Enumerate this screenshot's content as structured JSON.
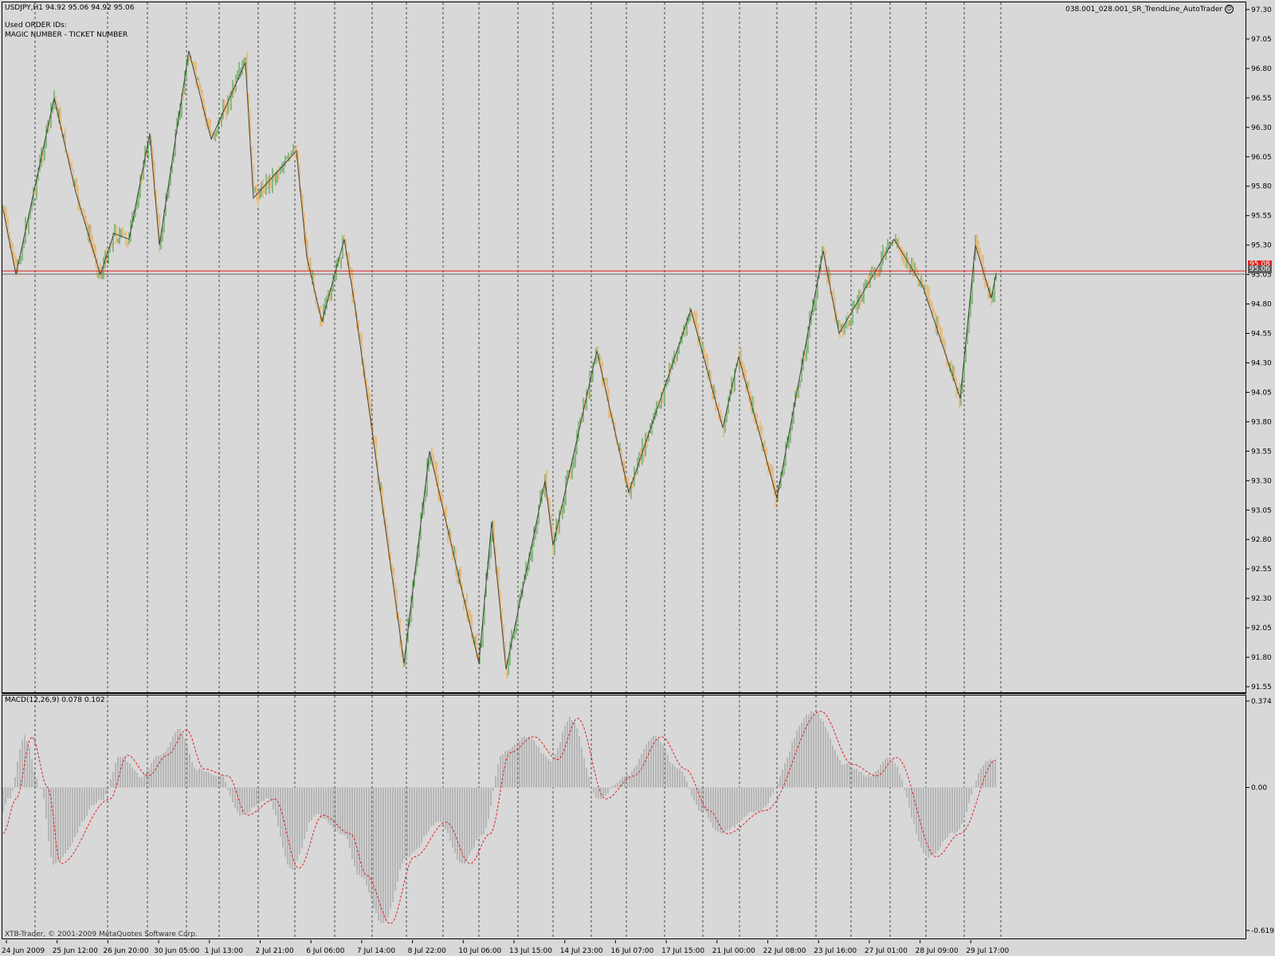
{
  "header": {
    "symbol_info": "USDJPY,H1  94.92 95.06 94.92 95.06",
    "order_ids_label": "Used ORDER IDs:",
    "magic_ticket_label": "MAGIC NUMBER - TICKET NUMBER",
    "expert_name": "038.001_028.001_SR_TrendLine_AutoTrader",
    "expert_smiley_icon": "smiley-icon"
  },
  "footer": {
    "copyright": "XTB-Trader, © 2001-2009 MetaQuotes Software Corp."
  },
  "macd": {
    "label": "MACD(12,26,9) 0.078 0.102",
    "ticks": [
      "0.374",
      "0.00",
      "-0.619"
    ],
    "range": [
      -0.619,
      0.374
    ]
  },
  "price_axis": {
    "ticks": [
      "97.30",
      "97.05",
      "96.80",
      "96.55",
      "96.30",
      "96.05",
      "95.80",
      "95.55",
      "95.30",
      "95.05",
      "94.80",
      "94.55",
      "94.30",
      "94.05",
      "93.80",
      "93.55",
      "93.30",
      "93.05",
      "92.80",
      "92.55",
      "92.30",
      "92.05",
      "91.80",
      "91.55"
    ],
    "range": [
      91.55,
      97.3
    ],
    "current_price": "95.06",
    "red_line_price": "95.08"
  },
  "time_axis": {
    "labels": [
      "24 Jun 2009",
      "25 Jun 12:00",
      "26 Jun 20:00",
      "30 Jun 05:00",
      "1 Jul 13:00",
      "2 Jul 21:00",
      "6 Jul 06:00",
      "7 Jul 14:00",
      "8 Jul 22:00",
      "10 Jul 06:00",
      "13 Jul 15:00",
      "14 Jul 23:00",
      "16 Jul 07:00",
      "17 Jul 15:00",
      "21 Jul 00:00",
      "22 Jul 08:00",
      "23 Jul 16:00",
      "27 Jul 01:00",
      "28 Jul 09:00",
      "29 Jul 17:00"
    ]
  },
  "colors": {
    "background": "#d8d8d8",
    "bull_bar": "#3c9a2e",
    "bear_bar": "#f0a030",
    "zigzag": "#444444",
    "sr_line": "#e02020",
    "macd_signal": "#e02020",
    "macd_hist": "#a8a8a8",
    "grid": "#444444"
  },
  "chart_data": {
    "type": "bar",
    "price_series": {
      "name": "USDJPY,H1",
      "zigzag_pivots": [
        [
          "24 Jun 2009",
          95.6
        ],
        [
          "24 Jun",
          95.05
        ],
        [
          "25 Jun",
          96.55
        ],
        [
          "25 Jun",
          95.75
        ],
        [
          "26 Jun",
          95.05
        ],
        [
          "26 Jun",
          95.4
        ],
        [
          "29 Jun",
          95.35
        ],
        [
          "29 Jun",
          96.25
        ],
        [
          "30 Jun",
          95.3
        ],
        [
          "30 Jun",
          96.95
        ],
        [
          "1 Jul",
          96.2
        ],
        [
          "1 Jul",
          96.85
        ],
        [
          "2 Jul",
          95.7
        ],
        [
          "2 Jul",
          96.1
        ],
        [
          "3 Jul",
          95.2
        ],
        [
          "6 Jul",
          94.65
        ],
        [
          "6 Jul",
          95.35
        ],
        [
          "7 Jul",
          94.8
        ],
        [
          "8 Jul",
          91.75
        ],
        [
          "8 Jul",
          93.55
        ],
        [
          "10 Jul",
          91.75
        ],
        [
          "10 Jul",
          92.95
        ],
        [
          "13 Jul",
          91.7
        ],
        [
          "13 Jul",
          93.3
        ],
        [
          "14 Jul",
          92.75
        ],
        [
          "14 Jul",
          94.4
        ],
        [
          "16 Jul",
          93.2
        ],
        [
          "17 Jul",
          94.75
        ],
        [
          "20 Jul",
          93.75
        ],
        [
          "21 Jul",
          94.35
        ],
        [
          "22 Jul",
          93.15
        ],
        [
          "23 Jul",
          95.25
        ],
        [
          "23 Jul",
          94.55
        ],
        [
          "27 Jul",
          95.35
        ],
        [
          "28 Jul",
          94.95
        ],
        [
          "28 Jul",
          94.0
        ],
        [
          "29 Jul",
          95.3
        ],
        [
          "29 Jul",
          94.85
        ],
        [
          "29 Jul 17:00",
          95.06
        ]
      ],
      "sr_level": 95.08
    },
    "macd_series": {
      "name": "MACD(12,26,9)",
      "main": 0.078,
      "signal": 0.102,
      "ylim": [
        -0.619,
        0.374
      ],
      "signal_pivots": [
        [
          "24 Jun 2009",
          -0.2
        ],
        [
          "24 Jun",
          -0.05
        ],
        [
          "25 Jun",
          0.22
        ],
        [
          "25 Jun",
          0.0
        ],
        [
          "26 Jun",
          -0.33
        ],
        [
          "26 Jun",
          -0.05
        ],
        [
          "29 Jun",
          0.14
        ],
        [
          "29 Jun",
          0.05
        ],
        [
          "30 Jun",
          0.14
        ],
        [
          "1 Jul",
          0.25
        ],
        [
          "1 Jul",
          0.08
        ],
        [
          "2 Jul",
          0.05
        ],
        [
          "2 Jul",
          -0.12
        ],
        [
          "3 Jul",
          -0.05
        ],
        [
          "6 Jul",
          -0.35
        ],
        [
          "7 Jul",
          -0.12
        ],
        [
          "7 Jul",
          -0.2
        ],
        [
          "8 Jul",
          -0.38
        ],
        [
          "8 Jul",
          -0.59
        ],
        [
          "9 Jul",
          -0.3
        ],
        [
          "10 Jul",
          -0.15
        ],
        [
          "10 Jul",
          -0.33
        ],
        [
          "13 Jul",
          -0.2
        ],
        [
          "13 Jul",
          0.15
        ],
        [
          "14 Jul",
          0.22
        ],
        [
          "14 Jul",
          0.12
        ],
        [
          "15 Jul",
          0.3
        ],
        [
          "16 Jul",
          -0.05
        ],
        [
          "17 Jul",
          0.05
        ],
        [
          "17 Jul",
          0.22
        ],
        [
          "20 Jul",
          0.08
        ],
        [
          "21 Jul",
          -0.1
        ],
        [
          "22 Jul",
          -0.2
        ],
        [
          "22 Jul",
          -0.1
        ],
        [
          "23 Jul",
          0.33
        ],
        [
          "24 Jul",
          0.1
        ],
        [
          "27 Jul",
          0.05
        ],
        [
          "27 Jul",
          0.13
        ],
        [
          "28 Jul",
          -0.3
        ],
        [
          "29 Jul",
          -0.2
        ],
        [
          "29 Jul 17:00",
          0.12
        ]
      ]
    }
  }
}
